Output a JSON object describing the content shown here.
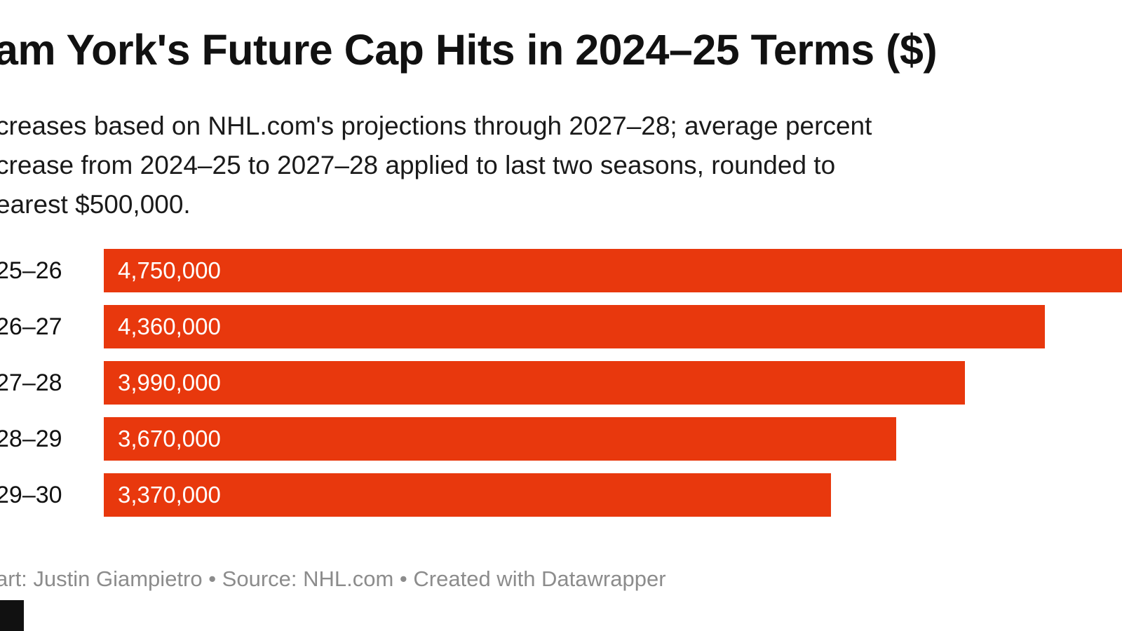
{
  "chart_data": {
    "type": "bar",
    "title": "am York's Future Cap Hits in 2024–25 Terms ($)",
    "subtitle_lines": [
      "creases based on NHL.com's projections through 2027–28; average percent",
      "crease from 2024–25 to 2027–28 applied to last two seasons, rounded to",
      "earest $500,000."
    ],
    "categories": [
      "25–26",
      "26–27",
      "27–28",
      "28–29",
      "29–30"
    ],
    "values": [
      4750000,
      4360000,
      3990000,
      3670000,
      3370000
    ],
    "value_labels": [
      "4,750,000",
      "4,360,000",
      "3,990,000",
      "3,670,000",
      "3,370,000"
    ],
    "bar_color": "#e8380d",
    "xlim": [
      0,
      4750000
    ],
    "orientation": "horizontal",
    "grid": false,
    "legend": "none"
  },
  "footer": {
    "credit": "art: Justin Giampietro • Source: NHL.com • Created with Datawrapper"
  }
}
